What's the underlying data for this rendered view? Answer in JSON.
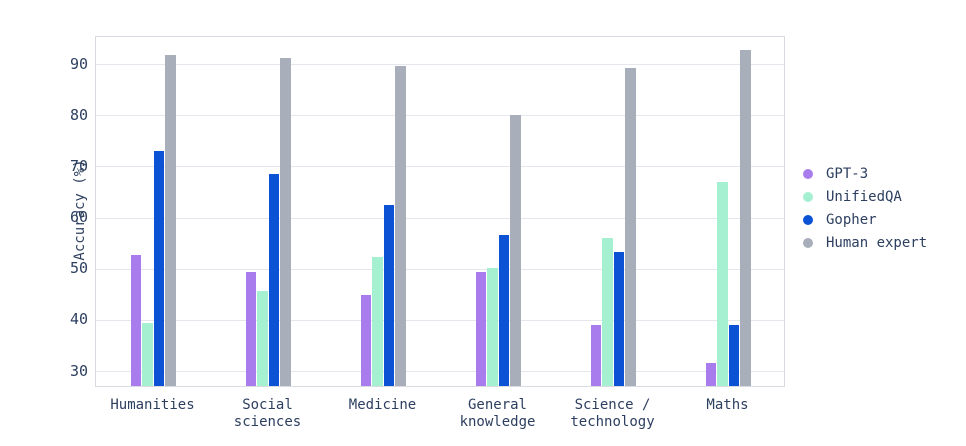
{
  "chart_data": {
    "type": "bar",
    "title": "",
    "xlabel": "",
    "ylabel": "Accuracy (%)",
    "ylim": [
      26.8,
      95.4
    ],
    "yticks": [
      30,
      40,
      50,
      60,
      70,
      80,
      90
    ],
    "grid": true,
    "legend_position": "right-center",
    "categories": [
      "Humanities",
      "Social\nsciences",
      "Medicine",
      "General\nknowledge",
      "Science /\ntechnology",
      "Maths"
    ],
    "series": [
      {
        "name": "GPT-3",
        "color": "#a87cec",
        "values": [
          52.4,
          49.0,
          44.5,
          49.0,
          38.8,
          31.3
        ]
      },
      {
        "name": "UnifiedQA",
        "color": "#a5f0d0",
        "values": [
          39.2,
          45.4,
          52.1,
          49.8,
          55.8,
          66.6
        ]
      },
      {
        "name": "Gopher",
        "color": "#0c52d4",
        "values": [
          72.8,
          68.2,
          62.1,
          56.4,
          52.9,
          38.8
        ]
      },
      {
        "name": "Human expert",
        "color": "#a8aeba",
        "values": [
          91.5,
          91.0,
          89.3,
          79.7,
          88.9,
          92.4
        ]
      }
    ],
    "colors": {
      "text": "#2d3f5f",
      "gridline": "#e5e7ec",
      "plot_border": "#d8dbe2",
      "background": "#ffffff"
    }
  }
}
